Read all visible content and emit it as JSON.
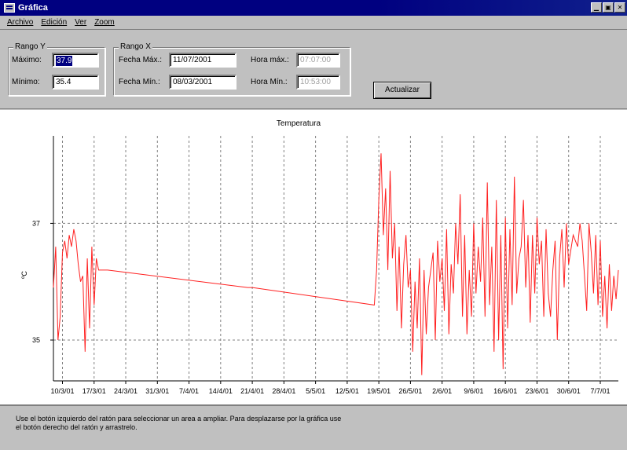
{
  "window": {
    "title": "Gráfica",
    "icon": "app-window-icon"
  },
  "menu": [
    "Archivo",
    "Edición",
    "Ver",
    "Zoom"
  ],
  "rango_y": {
    "label": "Rango Y",
    "max_label": "Máximo:",
    "max_value": "37.9",
    "min_label": "Mínimo:",
    "min_value": "35.4"
  },
  "rango_x": {
    "label": "Rango X",
    "fecha_max_label": "Fecha Máx.:",
    "fecha_max_value": "11/07/2001",
    "fecha_min_label": "Fecha Mín.:",
    "fecha_min_value": "08/03/2001",
    "hora_max_label": "Hora máx.:",
    "hora_max_value": "07:07:00",
    "hora_min_label": "Hora Mín.:",
    "hora_min_value": "10:53:00"
  },
  "actualizar_label": "Actualizar",
  "chart_data": {
    "type": "line",
    "title": "Temperatura",
    "xlabel": "",
    "ylabel": "ºC",
    "ylim": [
      34.3,
      38.5
    ],
    "yticks": [
      35,
      37
    ],
    "grid": true,
    "x_tick_labels": [
      "10/3/01",
      "17/3/01",
      "24/3/01",
      "31/3/01",
      "7/4/01",
      "14/4/01",
      "21/4/01",
      "28/4/01",
      "5/5/01",
      "12/5/01",
      "19/5/01",
      "26/5/01",
      "2/6/01",
      "9/6/01",
      "16/6/01",
      "23/6/01",
      "30/6/01",
      "7/7/01"
    ],
    "x_start": "2001-03-08",
    "x_end": "2001-07-11",
    "series_color": "#ff2020",
    "series": [
      {
        "values": [
          [
            "2001-03-08",
            35.9
          ],
          [
            "2001-03-08",
            36.6
          ],
          [
            "2001-03-09",
            35.0
          ],
          [
            "2001-03-09",
            35.4
          ],
          [
            "2001-03-10",
            36.5
          ],
          [
            "2001-03-10",
            36.7
          ],
          [
            "2001-03-11",
            36.4
          ],
          [
            "2001-03-11",
            36.8
          ],
          [
            "2001-03-12",
            36.6
          ],
          [
            "2001-03-12",
            36.9
          ],
          [
            "2001-03-13",
            36.7
          ],
          [
            "2001-03-13",
            36.3
          ],
          [
            "2001-03-14",
            36.0
          ],
          [
            "2001-03-14",
            36.1
          ],
          [
            "2001-03-15",
            34.8
          ],
          [
            "2001-03-15",
            36.4
          ],
          [
            "2001-03-16",
            35.2
          ],
          [
            "2001-03-16",
            36.6
          ],
          [
            "2001-03-17",
            35.6
          ],
          [
            "2001-03-17",
            36.4
          ],
          [
            "2001-03-18",
            36.2
          ],
          [
            "2001-03-20",
            36.2
          ],
          [
            "2001-04-20",
            35.9
          ],
          [
            "2001-04-21",
            35.9
          ],
          [
            "2001-05-18",
            35.6
          ],
          [
            "2001-05-18",
            36.2
          ],
          [
            "2001-05-19",
            37.4
          ],
          [
            "2001-05-19",
            38.2
          ],
          [
            "2001-05-20",
            36.8
          ],
          [
            "2001-05-20",
            37.6
          ],
          [
            "2001-05-21",
            36.2
          ],
          [
            "2001-05-21",
            37.9
          ],
          [
            "2001-05-22",
            36.4
          ],
          [
            "2001-05-22",
            37.0
          ],
          [
            "2001-05-23",
            35.5
          ],
          [
            "2001-05-23",
            36.6
          ],
          [
            "2001-05-24",
            35.2
          ],
          [
            "2001-05-24",
            36.3
          ],
          [
            "2001-05-25",
            36.8
          ],
          [
            "2001-05-25",
            35.9
          ],
          [
            "2001-05-26",
            36.2
          ],
          [
            "2001-05-26",
            34.8
          ],
          [
            "2001-05-27",
            36.0
          ],
          [
            "2001-05-27",
            35.2
          ],
          [
            "2001-05-28",
            36.4
          ],
          [
            "2001-05-28",
            34.4
          ],
          [
            "2001-05-29",
            36.2
          ],
          [
            "2001-05-29",
            35.1
          ],
          [
            "2001-05-30",
            35.9
          ],
          [
            "2001-05-30",
            36.2
          ],
          [
            "2001-05-31",
            36.5
          ],
          [
            "2001-05-31",
            35.0
          ],
          [
            "2001-06-01",
            36.7
          ],
          [
            "2001-06-01",
            36.0
          ],
          [
            "2001-06-02",
            36.4
          ],
          [
            "2001-06-02",
            35.5
          ],
          [
            "2001-06-03",
            36.9
          ],
          [
            "2001-06-03",
            35.1
          ],
          [
            "2001-06-04",
            36.3
          ],
          [
            "2001-06-04",
            35.8
          ],
          [
            "2001-06-05",
            37.0
          ],
          [
            "2001-06-05",
            36.3
          ],
          [
            "2001-06-06",
            37.5
          ],
          [
            "2001-06-06",
            35.4
          ],
          [
            "2001-06-07",
            36.8
          ],
          [
            "2001-06-07",
            35.1
          ],
          [
            "2001-06-08",
            36.2
          ],
          [
            "2001-06-08",
            35.4
          ],
          [
            "2001-06-09",
            37.0
          ],
          [
            "2001-06-09",
            35.8
          ],
          [
            "2001-06-10",
            36.6
          ],
          [
            "2001-06-10",
            36.0
          ],
          [
            "2001-06-11",
            37.1
          ],
          [
            "2001-06-11",
            35.4
          ],
          [
            "2001-06-12",
            37.7
          ],
          [
            "2001-06-12",
            35.6
          ],
          [
            "2001-06-13",
            36.6
          ],
          [
            "2001-06-13",
            34.8
          ],
          [
            "2001-06-14",
            37.4
          ],
          [
            "2001-06-14",
            35.0
          ],
          [
            "2001-06-15",
            36.8
          ],
          [
            "2001-06-15",
            34.5
          ],
          [
            "2001-06-16",
            37.1
          ],
          [
            "2001-06-16",
            35.2
          ],
          [
            "2001-06-17",
            36.9
          ],
          [
            "2001-06-17",
            35.6
          ],
          [
            "2001-06-18",
            37.8
          ],
          [
            "2001-06-18",
            35.8
          ],
          [
            "2001-06-19",
            36.4
          ],
          [
            "2001-06-19",
            36.6
          ],
          [
            "2001-06-20",
            37.4
          ],
          [
            "2001-06-20",
            35.9
          ],
          [
            "2001-06-21",
            36.8
          ],
          [
            "2001-06-21",
            35.3
          ],
          [
            "2001-06-22",
            36.8
          ],
          [
            "2001-06-22",
            35.8
          ],
          [
            "2001-06-23",
            37.1
          ],
          [
            "2001-06-23",
            36.3
          ],
          [
            "2001-06-24",
            36.7
          ],
          [
            "2001-06-24",
            35.4
          ],
          [
            "2001-06-25",
            36.9
          ],
          [
            "2001-06-25",
            35.8
          ],
          [
            "2001-06-26",
            35.4
          ],
          [
            "2001-06-26",
            36.2
          ],
          [
            "2001-06-27",
            36.7
          ],
          [
            "2001-06-27",
            35.0
          ],
          [
            "2001-06-28",
            36.4
          ],
          [
            "2001-06-28",
            36.9
          ],
          [
            "2001-06-29",
            35.9
          ],
          [
            "2001-06-29",
            37.0
          ],
          [
            "2001-06-30",
            36.3
          ],
          [
            "2001-07-01",
            36.8
          ],
          [
            "2001-07-02",
            36.6
          ],
          [
            "2001-07-02",
            37.0
          ],
          [
            "2001-07-03",
            36.7
          ],
          [
            "2001-07-03",
            36.1
          ],
          [
            "2001-07-04",
            35.5
          ],
          [
            "2001-07-04",
            37.0
          ],
          [
            "2001-07-05",
            36.5
          ],
          [
            "2001-07-05",
            35.8
          ],
          [
            "2001-07-06",
            36.8
          ],
          [
            "2001-07-06",
            35.6
          ],
          [
            "2001-07-07",
            36.7
          ],
          [
            "2001-07-07",
            35.4
          ],
          [
            "2001-07-08",
            36.1
          ],
          [
            "2001-07-08",
            35.2
          ],
          [
            "2001-07-09",
            36.3
          ],
          [
            "2001-07-09",
            35.5
          ],
          [
            "2001-07-10",
            36.1
          ],
          [
            "2001-07-10",
            35.7
          ],
          [
            "2001-07-11",
            36.2
          ]
        ]
      }
    ]
  },
  "status_text": "Use el botón izquierdo del ratón para seleccionar un area a ampliar. Para desplazarse por la gráfica use",
  "status_text_2": "el botón derecho del ratón y arrastrelo."
}
